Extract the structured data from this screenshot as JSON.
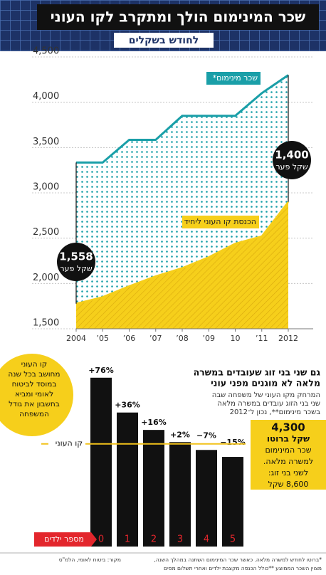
{
  "header": {
    "title": "שכר המינימום הולך ומתקרב לקו העוני",
    "subtitle": "לחודש בשקלים"
  },
  "chart_data": [
    {
      "type": "area",
      "categories": [
        "2004",
        "’05",
        "’06",
        "’07",
        "’08",
        "’09",
        "10",
        "’11",
        "2012"
      ],
      "series": [
        {
          "name": "שכר מינימום*",
          "color": "#1a9fa8",
          "values": [
            3335,
            3335,
            3585,
            3585,
            3850,
            3850,
            3850,
            4100,
            4300
          ]
        },
        {
          "name": "הכנסת קו העוני ליחיד",
          "color": "#f6cf1b",
          "values": [
            1777,
            1850,
            1970,
            2080,
            2170,
            2290,
            2440,
            2520,
            2900
          ]
        }
      ],
      "ylim": [
        1500,
        4500
      ],
      "yticks": [
        {
          "value": 1500,
          "label": "1,500"
        },
        {
          "value": 2000,
          "label": "2,000"
        },
        {
          "value": 2500,
          "label": "2,500"
        },
        {
          "value": 3000,
          "label": "3,000"
        },
        {
          "value": 3500,
          "label": "3,500"
        },
        {
          "value": 4000,
          "label": "4,000"
        },
        {
          "value": 4500,
          "label": "4,500"
        }
      ],
      "grid": true,
      "callouts": [
        {
          "value": 1558,
          "label": "1,558",
          "text": "שקל פער"
        },
        {
          "value": 1400,
          "label": "1,400",
          "text": "שקל פער"
        }
      ]
    },
    {
      "type": "bar",
      "title_lines": [
        "גם שני בני זוג שעובדים במשרה",
        "מלאה לא מוגנים מפני עוני"
      ],
      "subtitle_lines": [
        "המרחק מקו העוני של משפחה שבה",
        "שני בני הזוג עובדים במשרה מלאה",
        "בשכר מינימום**, נכון ל־2012"
      ],
      "categories": [
        "0",
        "1",
        "2",
        "3",
        "4",
        "5"
      ],
      "values": [
        76,
        36,
        16,
        2,
        -7,
        -15
      ],
      "value_labels": [
        "+76%",
        "+36%",
        "+16%",
        "+2%",
        "−7%",
        "−15%"
      ],
      "color": "#111111",
      "ylim": [
        -118,
        84
      ],
      "baseline_label": "קו העוני",
      "baseline_color": "#f2c21a",
      "x_label": "מספר ילדים",
      "x_label_color": "#e3262c"
    }
  ],
  "notes": {
    "poverty_line": [
      "קו העוני",
      "מחושב בכל שנה",
      "במוסד לביטוח",
      "לאומי ומביא",
      "בחשבון את גודל",
      "המשפחה"
    ],
    "minimum_wage": [
      "4,300",
      "שקל ברוטו",
      "שכר המינימום",
      "למשרה מלאה.",
      "לשני בני זוג:",
      "8,600 שקל"
    ]
  },
  "footer": {
    "notes": [
      "*ברוטו לחודש למשרה מלאה. כאשר שכר המינימום השתנה במהלך השנה,",
      "מצוין השכר הממוצע **כולל הכנסה מקצבת ילדים ואחרי תשלום מסים"
    ],
    "source": "מקור: ביטוח לאומי, הלמ\"ס"
  }
}
